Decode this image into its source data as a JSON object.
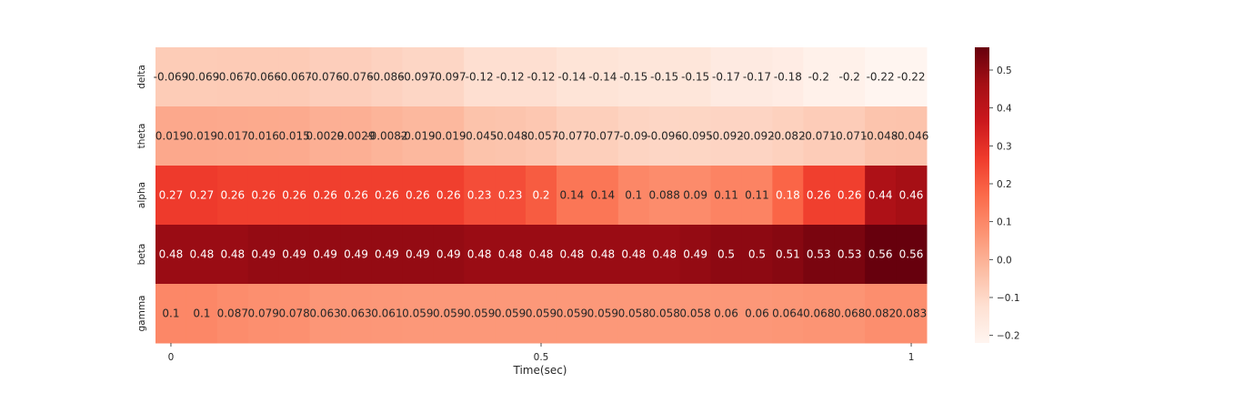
{
  "chart_data": {
    "type": "heatmap",
    "title": "",
    "xlabel": "Time(sec)",
    "ylabel": "",
    "rows": [
      "delta",
      "theta",
      "alpha",
      "beta",
      "gamma"
    ],
    "x_ticks": [
      {
        "index": 0,
        "label": "0"
      },
      {
        "index": 12,
        "label": "0.5"
      },
      {
        "index": 24,
        "label": "1"
      }
    ],
    "values": [
      [
        -0.069,
        -0.069,
        -0.067,
        -0.066,
        -0.067,
        -0.076,
        -0.076,
        -0.086,
        -0.097,
        -0.097,
        -0.12,
        -0.12,
        -0.12,
        -0.14,
        -0.14,
        -0.15,
        -0.15,
        -0.15,
        -0.17,
        -0.17,
        -0.18,
        -0.2,
        -0.2,
        -0.22,
        -0.22
      ],
      [
        0.019,
        0.019,
        0.017,
        0.016,
        0.015,
        0.0029,
        0.0029,
        -0.0082,
        -0.019,
        -0.019,
        -0.045,
        -0.048,
        -0.057,
        -0.077,
        -0.077,
        -0.09,
        -0.096,
        -0.095,
        -0.092,
        -0.092,
        -0.082,
        -0.071,
        -0.071,
        -0.048,
        -0.046
      ],
      [
        0.27,
        0.27,
        0.26,
        0.26,
        0.26,
        0.26,
        0.26,
        0.26,
        0.26,
        0.26,
        0.23,
        0.23,
        0.2,
        0.14,
        0.14,
        0.1,
        0.088,
        0.09,
        0.11,
        0.11,
        0.18,
        0.26,
        0.26,
        0.44,
        0.46
      ],
      [
        0.48,
        0.48,
        0.48,
        0.49,
        0.49,
        0.49,
        0.49,
        0.49,
        0.49,
        0.49,
        0.48,
        0.48,
        0.48,
        0.48,
        0.48,
        0.48,
        0.48,
        0.49,
        0.5,
        0.5,
        0.51,
        0.53,
        0.53,
        0.56,
        0.56
      ],
      [
        0.1,
        0.1,
        0.087,
        0.079,
        0.078,
        0.063,
        0.063,
        0.061,
        0.059,
        0.059,
        0.059,
        0.059,
        0.059,
        0.059,
        0.059,
        0.058,
        0.058,
        0.058,
        0.06,
        0.06,
        0.064,
        0.068,
        0.068,
        0.082,
        0.083
      ]
    ],
    "cell_labels": [
      [
        "-0.069",
        "-0.069",
        "-0.067",
        "-0.066",
        "-0.067",
        "-0.076",
        "-0.076",
        "-0.086",
        "-0.097",
        "-0.097",
        "-0.12",
        "-0.12",
        "-0.12",
        "-0.14",
        "-0.14",
        "-0.15",
        "-0.15",
        "-0.15",
        "-0.17",
        "-0.17",
        "-0.18",
        "-0.2",
        "-0.2",
        "-0.22",
        "-0.22"
      ],
      [
        "0.019",
        "0.019",
        "0.017",
        "0.016",
        "0.015",
        "0.0029",
        "0.0029",
        "-0.0082",
        "-0.019",
        "-0.019",
        "-0.045",
        "-0.048",
        "-0.057",
        "-0.077",
        "-0.077",
        "-0.09",
        "-0.096",
        "-0.095",
        "-0.092",
        "-0.092",
        "-0.082",
        "-0.071",
        "-0.071",
        "-0.048",
        "-0.046"
      ],
      [
        "0.27",
        "0.27",
        "0.26",
        "0.26",
        "0.26",
        "0.26",
        "0.26",
        "0.26",
        "0.26",
        "0.26",
        "0.23",
        "0.23",
        "0.2",
        "0.14",
        "0.14",
        "0.1",
        "0.088",
        "0.09",
        "0.11",
        "0.11",
        "0.18",
        "0.26",
        "0.26",
        "0.44",
        "0.46"
      ],
      [
        "0.48",
        "0.48",
        "0.48",
        "0.49",
        "0.49",
        "0.49",
        "0.49",
        "0.49",
        "0.49",
        "0.49",
        "0.48",
        "0.48",
        "0.48",
        "0.48",
        "0.48",
        "0.48",
        "0.48",
        "0.49",
        "0.5",
        "0.5",
        "0.51",
        "0.53",
        "0.53",
        "0.56",
        "0.56"
      ],
      [
        "0.1",
        "0.1",
        "0.087",
        "0.079",
        "0.078",
        "0.063",
        "0.063",
        "0.061",
        "0.059",
        "0.059",
        "0.059",
        "0.059",
        "0.059",
        "0.059",
        "0.059",
        "0.058",
        "0.058",
        "0.058",
        "0.06",
        "0.06",
        "0.064",
        "0.068",
        "0.068",
        "0.082",
        "0.083"
      ]
    ],
    "colorbar": {
      "colormap": "Reds",
      "vmin": -0.22,
      "vmax": 0.56,
      "ticks": [
        {
          "value": 0.5,
          "label": "0.5"
        },
        {
          "value": 0.4,
          "label": "0.4"
        },
        {
          "value": 0.3,
          "label": "0.3"
        },
        {
          "value": 0.2,
          "label": "0.2"
        },
        {
          "value": 0.1,
          "label": "0.1"
        },
        {
          "value": 0.0,
          "label": "0.0"
        },
        {
          "value": -0.1,
          "label": "−0.1"
        },
        {
          "value": -0.2,
          "label": "−0.2"
        }
      ]
    },
    "grid": false,
    "legend": "colorbar-right"
  }
}
